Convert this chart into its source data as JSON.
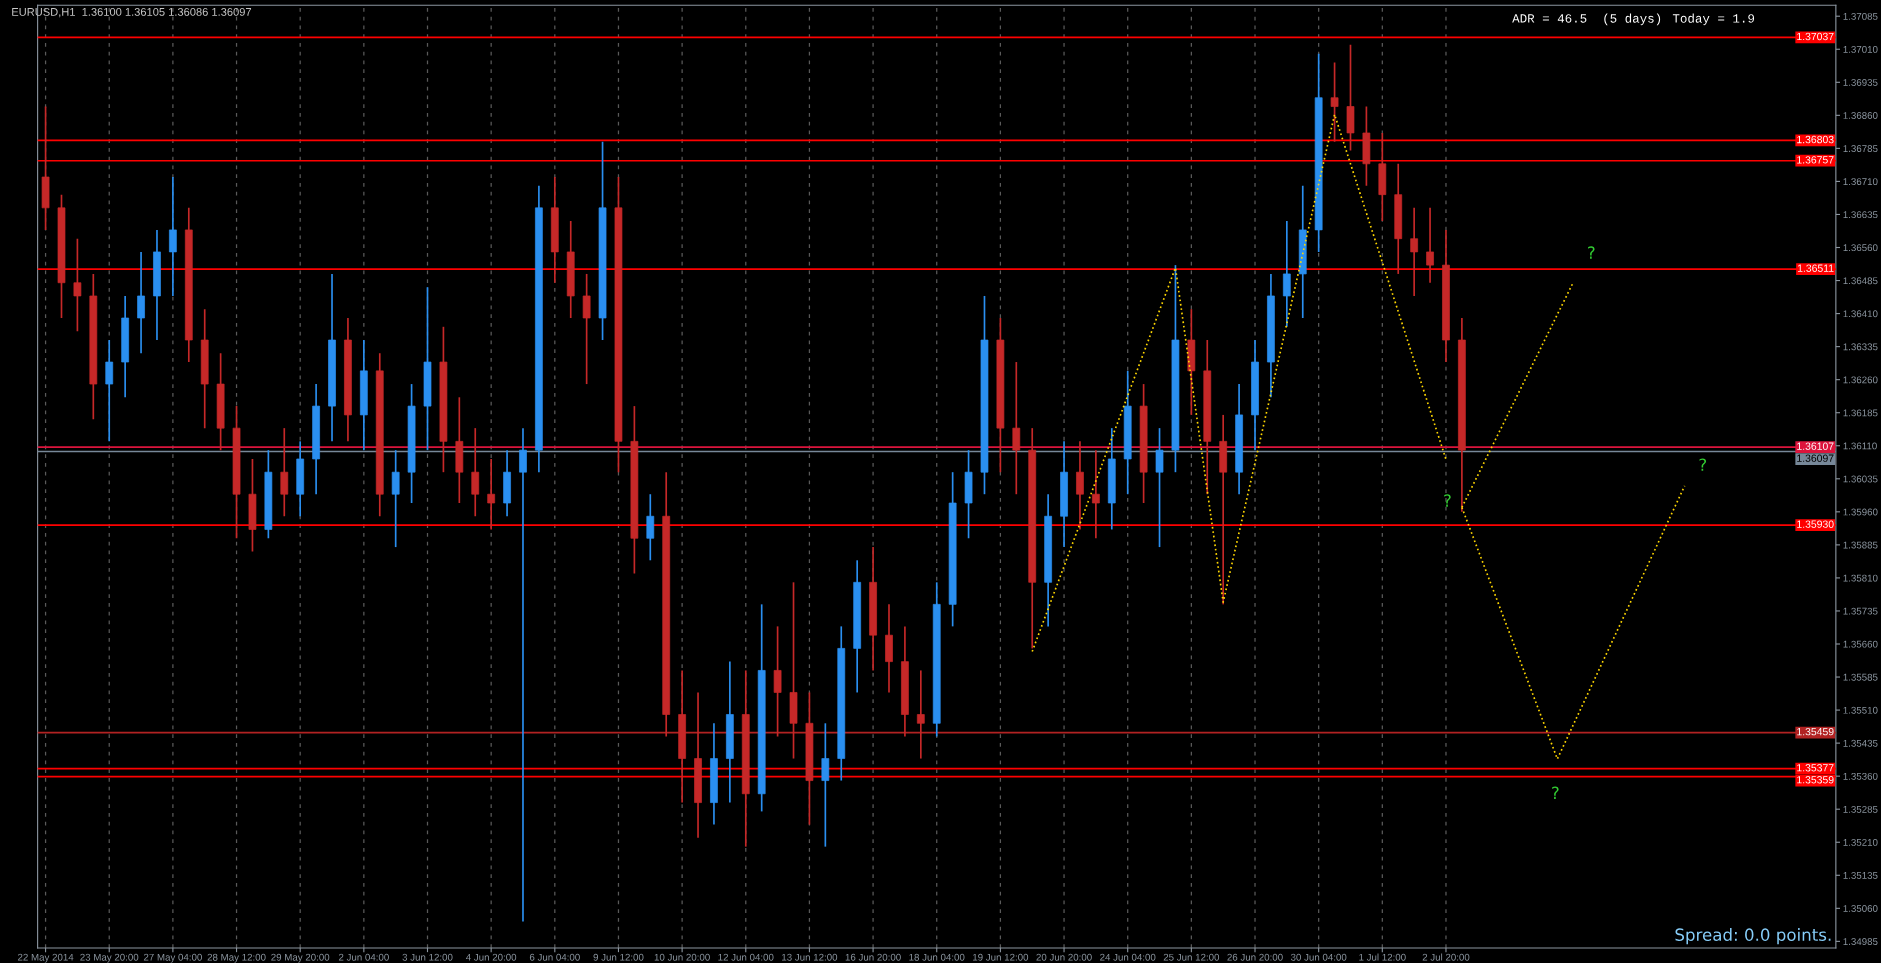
{
  "chart_data": {
    "type": "candlestick",
    "title": "EURUSD,H1  1.36100 1.36105 1.36086 1.36097",
    "categories": [
      "22 May 2014",
      null,
      null,
      null,
      "23 May 20:00",
      null,
      null,
      null,
      "27 May 04:00",
      null,
      null,
      null,
      "28 May 12:00",
      null,
      null,
      null,
      "29 May 20:00",
      null,
      null,
      null,
      "2 Jun 04:00",
      null,
      null,
      null,
      "3 Jun 12:00",
      null,
      null,
      null,
      "4 Jun 20:00",
      null,
      null,
      null,
      "6 Jun 04:00",
      null,
      null,
      null,
      "9 Jun 12:00",
      null,
      null,
      null,
      "10 Jun 20:00",
      null,
      null,
      null,
      "12 Jun 04:00",
      null,
      null,
      null,
      "13 Jun 12:00",
      null,
      null,
      null,
      "16 Jun 20:00",
      null,
      null,
      null,
      "18 Jun 04:00",
      null,
      null,
      null,
      "19 Jun 12:00",
      null,
      null,
      null,
      "20 Jun 20:00",
      null,
      null,
      null,
      "24 Jun 04:00",
      null,
      null,
      null,
      "25 Jun 12:00",
      null,
      null,
      null,
      "26 Jun 20:00",
      null,
      null,
      null,
      "30 Jun 04:00",
      null,
      null,
      null,
      "1 Jul 12:00",
      null,
      null,
      null,
      "2 Jul 20:00",
      null,
      null,
      null,
      null,
      null,
      null,
      null,
      null,
      null,
      null,
      null,
      null,
      null,
      null,
      null,
      null,
      null,
      null,
      null,
      null,
      null,
      null,
      null,
      null
    ],
    "series": [
      {
        "ohlc": [
          [
            1.3672,
            1.3688,
            1.366,
            1.3665
          ],
          [
            1.3665,
            1.3668,
            1.364,
            1.3648
          ],
          [
            1.3648,
            1.3658,
            1.3637,
            1.3645
          ],
          [
            1.3645,
            1.365,
            1.3617,
            1.3625
          ],
          [
            1.3625,
            1.3635,
            1.3612,
            1.363
          ],
          [
            1.363,
            1.3645,
            1.3622,
            1.364
          ],
          [
            1.364,
            1.3655,
            1.3632,
            1.3645
          ],
          [
            1.3645,
            1.366,
            1.3635,
            1.3655
          ],
          [
            1.3655,
            1.3672,
            1.3645,
            1.366
          ],
          [
            1.366,
            1.3665,
            1.363,
            1.3635
          ],
          [
            1.3635,
            1.3642,
            1.3615,
            1.3625
          ],
          [
            1.3625,
            1.3632,
            1.361,
            1.3615
          ],
          [
            1.3615,
            1.362,
            1.359,
            1.36
          ],
          [
            1.36,
            1.3608,
            1.3587,
            1.3592
          ],
          [
            1.3592,
            1.361,
            1.359,
            1.3605
          ],
          [
            1.3605,
            1.3615,
            1.3595,
            1.36
          ],
          [
            1.36,
            1.3612,
            1.3595,
            1.3608
          ],
          [
            1.3608,
            1.3625,
            1.36,
            1.362
          ],
          [
            1.362,
            1.365,
            1.3612,
            1.3635
          ],
          [
            1.3635,
            1.364,
            1.3612,
            1.3618
          ],
          [
            1.3618,
            1.3635,
            1.361,
            1.3628
          ],
          [
            1.3628,
            1.3632,
            1.3595,
            1.36
          ],
          [
            1.36,
            1.361,
            1.3588,
            1.3605
          ],
          [
            1.3605,
            1.3625,
            1.3598,
            1.362
          ],
          [
            1.362,
            1.3647,
            1.361,
            1.363
          ],
          [
            1.363,
            1.3638,
            1.3605,
            1.3612
          ],
          [
            1.3612,
            1.3622,
            1.3598,
            1.3605
          ],
          [
            1.3605,
            1.3615,
            1.3595,
            1.36
          ],
          [
            1.36,
            1.3608,
            1.3592,
            1.3598
          ],
          [
            1.3598,
            1.361,
            1.3595,
            1.3605
          ],
          [
            1.3605,
            1.3615,
            1.3503,
            1.361
          ],
          [
            1.361,
            1.367,
            1.3605,
            1.3665
          ],
          [
            1.3665,
            1.3672,
            1.3648,
            1.3655
          ],
          [
            1.3655,
            1.3662,
            1.364,
            1.3645
          ],
          [
            1.3645,
            1.365,
            1.3625,
            1.364
          ],
          [
            1.364,
            1.368,
            1.3635,
            1.3665
          ],
          [
            1.3665,
            1.3672,
            1.3605,
            1.3612
          ],
          [
            1.3612,
            1.362,
            1.3582,
            1.359
          ],
          [
            1.359,
            1.36,
            1.3585,
            1.3595
          ],
          [
            1.3595,
            1.3605,
            1.3545,
            1.355
          ],
          [
            1.355,
            1.356,
            1.353,
            1.354
          ],
          [
            1.354,
            1.3555,
            1.3522,
            1.353
          ],
          [
            1.353,
            1.3548,
            1.3525,
            1.354
          ],
          [
            1.354,
            1.3562,
            1.353,
            1.355
          ],
          [
            1.355,
            1.356,
            1.352,
            1.3532
          ],
          [
            1.3532,
            1.3575,
            1.3528,
            1.356
          ],
          [
            1.356,
            1.357,
            1.3545,
            1.3555
          ],
          [
            1.3555,
            1.358,
            1.354,
            1.3548
          ],
          [
            1.3548,
            1.3555,
            1.3525,
            1.3535
          ],
          [
            1.3535,
            1.3548,
            1.352,
            1.354
          ],
          [
            1.354,
            1.357,
            1.3535,
            1.3565
          ],
          [
            1.3565,
            1.3585,
            1.3555,
            1.358
          ],
          [
            1.358,
            1.3588,
            1.356,
            1.3568
          ],
          [
            1.3568,
            1.3575,
            1.3555,
            1.3562
          ],
          [
            1.3562,
            1.357,
            1.3545,
            1.355
          ],
          [
            1.355,
            1.356,
            1.354,
            1.3548
          ],
          [
            1.3548,
            1.358,
            1.3545,
            1.3575
          ],
          [
            1.3575,
            1.3605,
            1.357,
            1.3598
          ],
          [
            1.3598,
            1.361,
            1.359,
            1.3605
          ],
          [
            1.3605,
            1.3645,
            1.36,
            1.3635
          ],
          [
            1.3635,
            1.364,
            1.3605,
            1.3615
          ],
          [
            1.3615,
            1.363,
            1.36,
            1.361
          ],
          [
            1.361,
            1.3615,
            1.3565,
            1.358
          ],
          [
            1.358,
            1.36,
            1.357,
            1.3595
          ],
          [
            1.3595,
            1.3612,
            1.3588,
            1.3605
          ],
          [
            1.3605,
            1.3612,
            1.3592,
            1.36
          ],
          [
            1.36,
            1.361,
            1.359,
            1.3598
          ],
          [
            1.3598,
            1.3615,
            1.3592,
            1.3608
          ],
          [
            1.3608,
            1.3628,
            1.36,
            1.362
          ],
          [
            1.362,
            1.3625,
            1.3598,
            1.3605
          ],
          [
            1.3605,
            1.3615,
            1.3588,
            1.361
          ],
          [
            1.361,
            1.3652,
            1.3605,
            1.3635
          ],
          [
            1.3635,
            1.3642,
            1.3618,
            1.3628
          ],
          [
            1.3628,
            1.3635,
            1.36,
            1.3612
          ],
          [
            1.3612,
            1.3618,
            1.3575,
            1.3605
          ],
          [
            1.3605,
            1.3625,
            1.36,
            1.3618
          ],
          [
            1.3618,
            1.3635,
            1.361,
            1.363
          ],
          [
            1.363,
            1.365,
            1.3622,
            1.3645
          ],
          [
            1.3645,
            1.3662,
            1.3638,
            1.365
          ],
          [
            1.365,
            1.367,
            1.364,
            1.366
          ],
          [
            1.366,
            1.37,
            1.3655,
            1.369
          ],
          [
            1.369,
            1.3698,
            1.368,
            1.3688
          ],
          [
            1.3688,
            1.3702,
            1.3678,
            1.3682
          ],
          [
            1.3682,
            1.3688,
            1.367,
            1.3675
          ],
          [
            1.3675,
            1.3682,
            1.3662,
            1.3668
          ],
          [
            1.3668,
            1.3675,
            1.365,
            1.3658
          ],
          [
            1.3658,
            1.3665,
            1.3645,
            1.3655
          ],
          [
            1.3655,
            1.3665,
            1.3648,
            1.3652
          ],
          [
            1.3652,
            1.366,
            1.363,
            1.3635
          ],
          [
            1.3635,
            1.364,
            1.3596,
            1.361
          ],
          null,
          null,
          null,
          null,
          null,
          null,
          null,
          null,
          null,
          null,
          null,
          null,
          null,
          null,
          null,
          null,
          null,
          null,
          null,
          null,
          null,
          null,
          null
        ],
        "colors": [
          "#c62828",
          "#c62828",
          "#c62828",
          "#c62828",
          "#2a8ff0",
          "#2a8ff0",
          "#2a8ff0",
          "#2a8ff0",
          "#2a8ff0",
          "#c62828",
          "#c62828",
          "#c62828",
          "#c62828",
          "#c62828",
          "#2a8ff0",
          "#c62828",
          "#2a8ff0",
          "#2a8ff0",
          "#2a8ff0",
          "#c62828",
          "#2a8ff0",
          "#c62828",
          "#2a8ff0",
          "#2a8ff0",
          "#2a8ff0",
          "#c62828",
          "#c62828",
          "#c62828",
          "#c62828",
          "#2a8ff0",
          "#2a8ff0",
          "#2a8ff0",
          "#c62828",
          "#c62828",
          "#c62828",
          "#2a8ff0",
          "#c62828",
          "#c62828",
          "#2a8ff0",
          "#c62828",
          "#c62828",
          "#c62828",
          "#2a8ff0",
          "#2a8ff0",
          "#c62828",
          "#2a8ff0",
          "#c62828",
          "#c62828",
          "#c62828",
          "#2a8ff0",
          "#2a8ff0",
          "#2a8ff0",
          "#c62828",
          "#c62828",
          "#c62828",
          "#c62828",
          "#2a8ff0",
          "#2a8ff0",
          "#2a8ff0",
          "#2a8ff0",
          "#c62828",
          "#c62828",
          "#c62828",
          "#2a8ff0",
          "#2a8ff0",
          "#c62828",
          "#c62828",
          "#2a8ff0",
          "#2a8ff0",
          "#c62828",
          "#2a8ff0",
          "#2a8ff0",
          "#c62828",
          "#c62828",
          "#c62828",
          "#2a8ff0",
          "#2a8ff0",
          "#2a8ff0",
          "#2a8ff0",
          "#2a8ff0",
          "#2a8ff0",
          "#c62828",
          "#c62828",
          "#c62828",
          "#c62828",
          "#c62828",
          "#c62828",
          "#c62828",
          "#c62828",
          "#c62828",
          null,
          null,
          null,
          null,
          null,
          null,
          null,
          null,
          null,
          null,
          null,
          null,
          null,
          null,
          null,
          null,
          null,
          null,
          null,
          null,
          null,
          null,
          null
        ]
      },
      {
        "type": "line",
        "color": "#ffd700",
        "line_style": "dotted",
        "values": [
          null,
          null,
          null,
          null,
          null,
          null,
          null,
          null,
          null,
          null,
          null,
          null,
          null,
          null,
          null,
          null,
          null,
          null,
          null,
          null,
          null,
          null,
          null,
          null,
          null,
          null,
          null,
          null,
          null,
          null,
          null,
          null,
          null,
          null,
          null,
          null,
          null,
          null,
          null,
          null,
          null,
          null,
          null,
          null,
          null,
          null,
          null,
          null,
          null,
          null,
          null,
          null,
          null,
          null,
          null,
          null,
          null,
          null,
          null,
          null,
          null,
          null,
          1.35643,
          null,
          null,
          null,
          null,
          null,
          null,
          null,
          null,
          1.36514,
          null,
          null,
          1.35755,
          null,
          null,
          null,
          null,
          null,
          null,
          1.36862,
          null,
          null,
          null,
          null,
          null,
          null,
          1.36079,
          null,
          null,
          null,
          null,
          null,
          null,
          null,
          null,
          null,
          null,
          null,
          null,
          null,
          null,
          null,
          null,
          null,
          null,
          null,
          null,
          null,
          null,
          null,
          null
        ]
      },
      {
        "type": "line",
        "color": "#ffd700",
        "line_style": "dotted",
        "values": [
          null,
          null,
          null,
          null,
          null,
          null,
          null,
          null,
          null,
          null,
          null,
          null,
          null,
          null,
          null,
          null,
          null,
          null,
          null,
          null,
          null,
          null,
          null,
          null,
          null,
          null,
          null,
          null,
          null,
          null,
          null,
          null,
          null,
          null,
          null,
          null,
          null,
          null,
          null,
          null,
          null,
          null,
          null,
          null,
          null,
          null,
          null,
          null,
          null,
          null,
          null,
          null,
          null,
          null,
          null,
          null,
          null,
          null,
          null,
          null,
          null,
          null,
          null,
          null,
          null,
          null,
          null,
          null,
          null,
          null,
          null,
          null,
          null,
          null,
          null,
          null,
          null,
          null,
          null,
          null,
          null,
          null,
          null,
          null,
          null,
          null,
          null,
          null,
          null,
          1.3597,
          null,
          null,
          null,
          null,
          null,
          null,
          1.36481,
          null,
          null,
          null,
          null,
          null,
          null,
          null,
          null,
          null,
          null,
          null,
          null,
          null,
          null,
          null,
          null
        ]
      },
      {
        "type": "line",
        "color": "#ffd700",
        "line_style": "dotted",
        "values": [
          null,
          null,
          null,
          null,
          null,
          null,
          null,
          null,
          null,
          null,
          null,
          null,
          null,
          null,
          null,
          null,
          null,
          null,
          null,
          null,
          null,
          null,
          null,
          null,
          null,
          null,
          null,
          null,
          null,
          null,
          null,
          null,
          null,
          null,
          null,
          null,
          null,
          null,
          null,
          null,
          null,
          null,
          null,
          null,
          null,
          null,
          null,
          null,
          null,
          null,
          null,
          null,
          null,
          null,
          null,
          null,
          null,
          null,
          null,
          null,
          null,
          null,
          null,
          null,
          null,
          null,
          null,
          null,
          null,
          null,
          null,
          null,
          null,
          null,
          null,
          null,
          null,
          null,
          null,
          null,
          null,
          null,
          null,
          null,
          null,
          null,
          null,
          null,
          null,
          1.3597,
          null,
          null,
          null,
          null,
          null,
          1.35399,
          null,
          null,
          null,
          null,
          null,
          null,
          null,
          1.36019,
          null,
          null,
          null,
          null,
          null,
          null,
          null,
          null,
          null
        ]
      }
    ],
    "ylim": [
      1.3497,
      1.3711
    ],
    "yticks": [
      {
        "value": 1.37085,
        "label": "1.37085"
      },
      {
        "value": 1.3701,
        "label": "1.37010"
      },
      {
        "value": 1.36935,
        "label": "1.36935"
      },
      {
        "value": 1.3686,
        "label": "1.36860"
      },
      {
        "value": 1.36785,
        "label": "1.36785"
      },
      {
        "value": 1.3671,
        "label": "1.36710"
      },
      {
        "value": 1.36635,
        "label": "1.36635"
      },
      {
        "value": 1.3656,
        "label": "1.36560"
      },
      {
        "value": 1.36485,
        "label": "1.36485"
      },
      {
        "value": 1.3641,
        "label": "1.36410"
      },
      {
        "value": 1.36335,
        "label": "1.36335"
      },
      {
        "value": 1.3626,
        "label": "1.36260"
      },
      {
        "value": 1.36185,
        "label": "1.36185"
      },
      {
        "value": 1.3611,
        "label": "1.36110"
      },
      {
        "value": 1.36035,
        "label": "1.36035"
      },
      {
        "value": 1.3596,
        "label": "1.35960"
      },
      {
        "value": 1.35885,
        "label": "1.35885"
      },
      {
        "value": 1.3581,
        "label": "1.35810"
      },
      {
        "value": 1.35735,
        "label": "1.35735"
      },
      {
        "value": 1.3566,
        "label": "1.35660"
      },
      {
        "value": 1.35585,
        "label": "1.35585"
      },
      {
        "value": 1.3551,
        "label": "1.35510"
      },
      {
        "value": 1.35435,
        "label": "1.35435"
      },
      {
        "value": 1.3536,
        "label": "1.35360"
      },
      {
        "value": 1.35285,
        "label": "1.35285"
      },
      {
        "value": 1.3521,
        "label": "1.35210"
      },
      {
        "value": 1.35135,
        "label": "1.35135"
      },
      {
        "value": 1.3506,
        "label": "1.35060"
      },
      {
        "value": 1.34985,
        "label": "1.34985"
      }
    ],
    "ref_lines": [
      {
        "axis": "y",
        "value": 1.37037,
        "label": "1.37037",
        "color": "#ff0000"
      },
      {
        "axis": "y",
        "value": 1.36803,
        "label": "1.36803",
        "color": "#ff0000"
      },
      {
        "axis": "y",
        "value": 1.36757,
        "label": "1.36757",
        "color": "#ff0000"
      },
      {
        "axis": "y",
        "value": 1.36511,
        "label": "1.36511",
        "color": "#ff0000"
      },
      {
        "axis": "y",
        "value": 1.36107,
        "label": "1.36107",
        "color": "#dc143c"
      },
      {
        "axis": "y",
        "value": 1.36097,
        "label": "1.36097",
        "color": "#778899"
      },
      {
        "axis": "y",
        "value": 1.3593,
        "label": "1.35930",
        "color": "#ff0000"
      },
      {
        "axis": "y",
        "value": 1.35459,
        "label": "1.35459",
        "color": "#b22222"
      },
      {
        "axis": "y",
        "value": 1.35377,
        "label": "1.35377",
        "color": "#ff0000"
      },
      {
        "axis": "y",
        "value": 1.35359,
        "label": "1.35359",
        "color": "#ff0000"
      }
    ],
    "annotations": [
      "ADR = 46.5  (5 days)",
      "Today = 1.9",
      "Spread: 0.0 points.",
      "?",
      "?",
      "?",
      "?"
    ],
    "grid": "x"
  }
}
